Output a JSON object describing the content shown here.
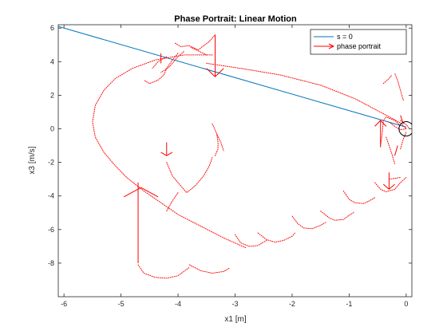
{
  "chart_data": {
    "type": "line",
    "title": "Phase Portrait: Linear Motion",
    "xlabel": "x1 [m]",
    "ylabel": "x3 [m/s]",
    "xlim": [
      -6.1,
      0.1
    ],
    "ylim": [
      -10,
      6.2
    ],
    "x_ticks": [
      -6,
      -5,
      -4,
      -3,
      -2,
      -1,
      0
    ],
    "y_ticks": [
      6,
      4,
      2,
      0,
      -2,
      -4,
      -6,
      -8
    ],
    "x_tick_labels": [
      "-6",
      "-5",
      "-4",
      "-3",
      "-2",
      "-1",
      "0"
    ],
    "y_tick_labels": [
      "6",
      "4",
      "2",
      "0",
      "-2",
      "-4",
      "-6",
      "-8"
    ],
    "grid": false,
    "legend_position": "top-right",
    "legend": [
      "s = 0",
      "phase portrait"
    ],
    "colors": {
      "switching_line": "#0072bd",
      "phase": "#ff0000",
      "axes": "#262626"
    },
    "series": [
      {
        "name": "s = 0",
        "kind": "line",
        "points": [
          [
            -6.1,
            6.1
          ],
          [
            0,
            0.1
          ]
        ]
      },
      {
        "name": "phase portrait",
        "kind": "dotted",
        "trajectories": [
          [
            [
              -3.4,
              4.4
            ],
            [
              -3.9,
              4.4
            ],
            [
              -4.4,
              4.1
            ],
            [
              -4.8,
              3.6
            ],
            [
              -5.1,
              3.0
            ],
            [
              -5.3,
              2.3
            ],
            [
              -5.45,
              1.4
            ],
            [
              -5.5,
              0.4
            ],
            [
              -5.45,
              -0.5
            ],
            [
              -5.3,
              -1.4
            ],
            [
              -5.1,
              -2.2
            ],
            [
              -4.9,
              -2.9
            ],
            [
              -4.6,
              -3.7
            ],
            [
              -4.3,
              -4.4
            ],
            [
              -4.0,
              -5.1
            ],
            [
              -3.6,
              -5.8
            ],
            [
              -3.2,
              -6.5
            ],
            [
              -2.8,
              -7.1
            ]
          ],
          [
            [
              -4.7,
              -8.1
            ],
            [
              -4.6,
              -8.6
            ],
            [
              -4.4,
              -8.85
            ],
            [
              -4.2,
              -8.9
            ],
            [
              -4.0,
              -8.75
            ],
            [
              -3.9,
              -8.5
            ],
            [
              -3.8,
              -8.25
            ]
          ],
          [
            [
              -3.8,
              -8.1
            ],
            [
              -3.6,
              -8.45
            ],
            [
              -3.4,
              -8.6
            ],
            [
              -3.2,
              -8.5
            ],
            [
              -3.1,
              -8.3
            ]
          ],
          [
            [
              -3.0,
              -6.3
            ],
            [
              -2.9,
              -6.8
            ],
            [
              -2.75,
              -7.0
            ],
            [
              -2.6,
              -6.95
            ],
            [
              -2.45,
              -6.65
            ]
          ],
          [
            [
              -2.6,
              -6.2
            ],
            [
              -2.45,
              -6.6
            ],
            [
              -2.3,
              -6.75
            ],
            [
              -2.15,
              -6.65
            ],
            [
              -2.0,
              -6.4
            ],
            [
              -1.95,
              -6.2
            ]
          ],
          [
            [
              -2.0,
              -5.2
            ],
            [
              -1.9,
              -5.65
            ],
            [
              -1.8,
              -5.9
            ],
            [
              -1.65,
              -5.95
            ],
            [
              -1.5,
              -5.75
            ],
            [
              -1.4,
              -5.55
            ]
          ],
          [
            [
              -1.5,
              -4.9
            ],
            [
              -1.35,
              -5.3
            ],
            [
              -1.25,
              -5.45
            ],
            [
              -1.1,
              -5.4
            ],
            [
              -1.0,
              -5.15
            ],
            [
              -0.9,
              -4.95
            ]
          ],
          [
            [
              -1.1,
              -3.7
            ],
            [
              -1.0,
              -4.2
            ],
            [
              -0.9,
              -4.4
            ],
            [
              -0.75,
              -4.45
            ],
            [
              -0.65,
              -4.3
            ],
            [
              -0.55,
              -4.1
            ]
          ],
          [
            [
              -0.55,
              -3.2
            ],
            [
              -0.45,
              -3.6
            ],
            [
              -0.35,
              -3.75
            ],
            [
              -0.2,
              -3.6
            ],
            [
              -0.1,
              -3.2
            ],
            [
              0,
              -2.9
            ]
          ],
          [
            [
              -0.3,
              -3.0
            ],
            [
              -0.2,
              -2.95
            ],
            [
              -0.1,
              -2.9
            ]
          ],
          [
            [
              -4.2,
              -2.0
            ],
            [
              -4.1,
              -2.8
            ],
            [
              -4.0,
              -3.2
            ],
            [
              -3.9,
              -3.6
            ],
            [
              -3.85,
              -3.8
            ],
            [
              -3.7,
              -3.4
            ],
            [
              -3.55,
              -2.8
            ],
            [
              -3.45,
              -2.2
            ],
            [
              -3.4,
              -1.7
            ]
          ],
          [
            [
              -4.2,
              -4.9
            ],
            [
              -4.1,
              -4.3
            ],
            [
              -4.0,
              -3.8
            ]
          ],
          [
            [
              -3.35,
              -1.6
            ],
            [
              -3.3,
              -1.2
            ],
            [
              -3.3,
              -0.8
            ],
            [
              -3.32,
              -0.3
            ]
          ],
          [
            [
              -3.4,
              0.3
            ],
            [
              -3.32,
              -0.3
            ],
            [
              -3.25,
              -0.8
            ],
            [
              -3.2,
              -1.3
            ]
          ],
          [
            [
              -4.0,
              4.5
            ],
            [
              -4.1,
              4.1
            ],
            [
              -4.2,
              3.6
            ],
            [
              -4.25,
              3.2
            ],
            [
              -4.35,
              2.9
            ],
            [
              -4.5,
              2.7
            ],
            [
              -4.6,
              2.9
            ]
          ],
          [
            [
              -3.9,
              4.6
            ],
            [
              -4.0,
              4.3
            ],
            [
              -4.15,
              3.7
            ],
            [
              -4.3,
              3.35
            ]
          ],
          [
            [
              -4.05,
              5.1
            ],
            [
              -3.95,
              4.9
            ],
            [
              -3.8,
              4.95
            ],
            [
              -3.65,
              4.7
            ],
            [
              -3.55,
              4.95
            ],
            [
              -3.45,
              5.2
            ],
            [
              -3.35,
              5.6
            ]
          ],
          [
            [
              -3.5,
              4.4
            ],
            [
              -3.65,
              4.65
            ],
            [
              -3.78,
              4.85
            ]
          ],
          [
            [
              -3.35,
              3.9
            ],
            [
              -3.35,
              3.3
            ]
          ],
          [
            [
              -4.2,
              4.3
            ],
            [
              -4.35,
              4.0
            ],
            [
              -4.45,
              3.6
            ]
          ],
          [
            [
              -3.5,
              3.9
            ],
            [
              -2.9,
              3.6
            ],
            [
              -2.2,
              3.2
            ],
            [
              -1.5,
              2.6
            ],
            [
              -0.9,
              1.8
            ],
            [
              -0.4,
              0.9
            ],
            [
              -0.1,
              0.35
            ],
            [
              0,
              0
            ]
          ],
          [
            [
              -0.3,
              0.4
            ],
            [
              -0.18,
              0.1
            ],
            [
              -0.1,
              -0.05
            ],
            [
              0,
              0
            ]
          ],
          [
            [
              -0.45,
              -1.0
            ],
            [
              -0.42,
              -0.3
            ],
            [
              -0.4,
              0.5
            ],
            [
              -0.35,
              0.7
            ],
            [
              -0.2,
              0.5
            ],
            [
              -0.1,
              0.2
            ]
          ],
          [
            [
              -0.1,
              -1.2
            ],
            [
              -0.05,
              -0.6
            ],
            [
              0,
              -0.2
            ]
          ],
          [
            [
              -0.35,
              -0.5
            ],
            [
              -0.3,
              -1.0
            ],
            [
              -0.25,
              -1.5
            ],
            [
              -0.2,
              -2.1
            ]
          ],
          [
            [
              -0.05,
              1.7
            ],
            [
              -0.1,
              2.3
            ],
            [
              -0.15,
              2.9
            ],
            [
              -0.2,
              3.3
            ]
          ],
          [
            [
              -0.4,
              2.7
            ],
            [
              -0.3,
              3.0
            ],
            [
              -0.25,
              3.2
            ]
          ],
          [
            [
              -0.1,
              0.5
            ],
            [
              0,
              0.25
            ],
            [
              0.05,
              0.05
            ]
          ]
        ],
        "arrows": [
          [
            -4.7,
            -8.0,
            -4.7,
            -3.2
          ],
          [
            -4.65,
            -3.5,
            -4.95,
            -4.05
          ],
          [
            -4.65,
            -3.5,
            -4.35,
            -4.05
          ],
          [
            -4.2,
            -0.8,
            -4.2,
            -1.6
          ],
          [
            -4.2,
            -1.6,
            -4.3,
            -1.4
          ],
          [
            -4.2,
            -1.6,
            -4.1,
            -1.4
          ],
          [
            -3.35,
            5.6,
            -3.35,
            3.1
          ],
          [
            -3.35,
            3.1,
            -3.5,
            3.6
          ],
          [
            -3.35,
            3.1,
            -3.2,
            3.6
          ],
          [
            -0.45,
            -1.1,
            -0.45,
            0.5
          ],
          [
            -0.45,
            0.5,
            -0.55,
            0.15
          ],
          [
            -0.45,
            0.5,
            -0.35,
            0.15
          ],
          [
            -0.3,
            -2.6,
            -0.3,
            -3.6
          ],
          [
            -0.3,
            -3.6,
            -0.4,
            -3.3
          ],
          [
            -0.3,
            -3.6,
            -0.2,
            -3.3
          ],
          [
            -4.3,
            4.5,
            -4.3,
            3.9
          ],
          [
            -0.1,
            0.8,
            -0.05,
            0.3
          ],
          [
            -0.15,
            -1.0,
            -0.2,
            -1.6
          ]
        ]
      }
    ],
    "marker": {
      "kind": "circle",
      "x": 0,
      "y": 0
    }
  }
}
